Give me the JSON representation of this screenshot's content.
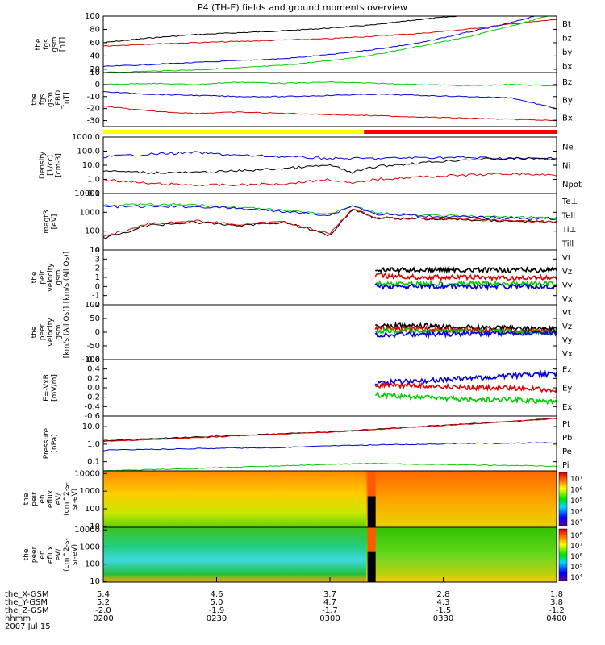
{
  "title": "P4 (TH-E) fields and ground moments overview",
  "chart_data": [
    {
      "type": "line",
      "ylabel": [
        "the",
        "fgs",
        "gsm",
        "[nT]"
      ],
      "ylim": [
        15,
        100
      ],
      "yticks": [
        "100",
        "80",
        "60",
        "40",
        "20"
      ],
      "yticks_values": [
        100,
        80,
        60,
        40,
        20
      ],
      "legend": [
        {
          "name": "Bt",
          "color": "#000000"
        },
        {
          "name": "bz",
          "color": "#e00000"
        },
        {
          "name": "by",
          "color": "#00cc00"
        },
        {
          "name": "bx",
          "color": "#0000e0"
        }
      ],
      "series": [
        {
          "name": "Bt",
          "color": "#000000",
          "x": [
            0,
            0.1,
            0.2,
            0.3,
            0.4,
            0.5,
            0.6,
            0.7,
            0.78
          ],
          "values": [
            60,
            67,
            72,
            75,
            78,
            82,
            87,
            95,
            100
          ]
        },
        {
          "name": "bz",
          "color": "#e00000",
          "x": [
            0,
            0.1,
            0.2,
            0.3,
            0.4,
            0.5,
            0.6,
            0.7,
            0.8,
            0.9,
            1.0
          ],
          "values": [
            55,
            58,
            60,
            62,
            64,
            66,
            70,
            74,
            80,
            88,
            95
          ]
        },
        {
          "name": "bx",
          "color": "#0000e0",
          "x": [
            0,
            0.1,
            0.2,
            0.3,
            0.4,
            0.5,
            0.6,
            0.7,
            0.8,
            0.9,
            0.95
          ],
          "values": [
            24,
            27,
            30,
            33,
            36,
            42,
            50,
            60,
            75,
            90,
            100
          ]
        },
        {
          "name": "by",
          "color": "#00cc00",
          "x": [
            0,
            0.1,
            0.2,
            0.3,
            0.4,
            0.5,
            0.6,
            0.7,
            0.8,
            0.9,
            0.98
          ],
          "values": [
            15,
            17,
            19,
            22,
            26,
            33,
            42,
            55,
            68,
            85,
            100
          ]
        }
      ]
    },
    {
      "type": "line",
      "ylabel": [
        "the",
        "fgs",
        "gsm",
        "_EBD",
        "[nT]"
      ],
      "ylim": [
        -35,
        10
      ],
      "yticks": [
        "10",
        "0",
        "-10",
        "-20",
        "-30"
      ],
      "yticks_values": [
        10,
        0,
        -10,
        -20,
        -30
      ],
      "legend": [
        {
          "name": "Bz",
          "color": "#e00000"
        },
        {
          "name": "By",
          "color": "#00cc00"
        },
        {
          "name": "Bx",
          "color": "#0000e0"
        }
      ],
      "series": [
        {
          "name": "By",
          "color": "#00cc00",
          "x": [
            0,
            0.1,
            0.2,
            0.3,
            0.4,
            0.5,
            0.6,
            0.7,
            0.8,
            0.9,
            1.0
          ],
          "values": [
            0,
            1,
            0,
            2,
            1,
            2,
            1,
            0,
            -1,
            0,
            -1
          ]
        },
        {
          "name": "Bx",
          "color": "#0000e0",
          "x": [
            0,
            0.1,
            0.2,
            0.3,
            0.4,
            0.5,
            0.6,
            0.7,
            0.8,
            0.9,
            1.0
          ],
          "values": [
            -6,
            -8,
            -9,
            -10,
            -10,
            -9,
            -8,
            -9,
            -10,
            -11,
            -20
          ]
        },
        {
          "name": "Bz",
          "color": "#e00000",
          "x": [
            0,
            0.1,
            0.2,
            0.3,
            0.4,
            0.5,
            0.6,
            0.7,
            0.8,
            0.9,
            1.0
          ],
          "values": [
            -18,
            -22,
            -24,
            -23,
            -24,
            -25,
            -26,
            -27,
            -28,
            -29,
            -30
          ]
        }
      ]
    },
    {
      "type": "line",
      "ylabel": [
        "Density",
        "[1/cc]",
        "[cm-3]"
      ],
      "yscale": "log",
      "ylim": [
        0.1,
        1000
      ],
      "yticks": [
        "1000.0",
        "100.0",
        "10.0",
        "1.0",
        "0.1"
      ],
      "yticks_values": [
        1000,
        100,
        10,
        1,
        0.1
      ],
      "legend": [
        {
          "name": "Ne",
          "color": "#e00000"
        },
        {
          "name": "Ni",
          "color": "#000000"
        },
        {
          "name": "Npot",
          "color": "#0000e0"
        }
      ],
      "series": [
        {
          "name": "Npot",
          "color": "#0000e0",
          "x": [
            0,
            0.1,
            0.2,
            0.3,
            0.4,
            0.5,
            0.6,
            0.7,
            0.8,
            0.9,
            1.0
          ],
          "values": [
            40,
            60,
            80,
            50,
            40,
            30,
            30,
            35,
            35,
            30,
            30
          ]
        },
        {
          "name": "Ni",
          "color": "#000000",
          "x": [
            0,
            0.1,
            0.2,
            0.3,
            0.4,
            0.5,
            0.55,
            0.6,
            0.7,
            0.8,
            0.9,
            1.0
          ],
          "values": [
            4,
            3,
            3,
            4,
            6,
            10,
            3,
            8,
            15,
            25,
            30,
            30
          ]
        },
        {
          "name": "Ne",
          "color": "#e00000",
          "x": [
            0,
            0.1,
            0.2,
            0.3,
            0.4,
            0.5,
            0.55,
            0.6,
            0.7,
            0.8,
            0.9,
            1.0
          ],
          "values": [
            1,
            0.5,
            0.4,
            0.4,
            0.5,
            1,
            0.5,
            1,
            1.5,
            2,
            2.5,
            2
          ]
        }
      ]
    },
    {
      "type": "line",
      "ylabel": [
        "magt3",
        "[eV]"
      ],
      "yscale": "log",
      "ylim": [
        10,
        10000
      ],
      "yticks": [
        "10000",
        "1000",
        "100",
        "10"
      ],
      "yticks_values": [
        10000,
        1000,
        100,
        10
      ],
      "legend": [
        {
          "name": "Te⊥",
          "color": "#e00000"
        },
        {
          "name": "Tell",
          "color": "#000000"
        },
        {
          "name": "Ti⊥",
          "color": "#00cc00"
        },
        {
          "name": "Till",
          "color": "#00cc00"
        }
      ],
      "series": [
        {
          "name": "Till",
          "color": "#00cc00",
          "x": [
            0,
            0.1,
            0.2,
            0.3,
            0.4,
            0.5,
            0.55,
            0.6,
            0.7,
            0.8,
            0.9,
            1.0
          ],
          "values": [
            2500,
            2500,
            2500,
            1800,
            1200,
            800,
            2500,
            900,
            700,
            600,
            550,
            500
          ]
        },
        {
          "name": "Ti⊥",
          "color": "#0000e0",
          "x": [
            0,
            0.1,
            0.2,
            0.3,
            0.4,
            0.5,
            0.55,
            0.6,
            0.7,
            0.8,
            0.9,
            1.0
          ],
          "values": [
            2000,
            2000,
            2000,
            1600,
            1100,
            700,
            2300,
            800,
            650,
            550,
            500,
            450
          ]
        },
        {
          "name": "Tell",
          "color": "#000000",
          "x": [
            0,
            0.1,
            0.2,
            0.3,
            0.4,
            0.5,
            0.55,
            0.6,
            0.7,
            0.8,
            0.9,
            1.0
          ],
          "values": [
            40,
            200,
            300,
            200,
            300,
            60,
            1500,
            500,
            450,
            400,
            350,
            300
          ]
        },
        {
          "name": "Te⊥",
          "color": "#e00000",
          "x": [
            0,
            0.1,
            0.2,
            0.3,
            0.4,
            0.5,
            0.55,
            0.6,
            0.7,
            0.8,
            0.9,
            1.0
          ],
          "values": [
            50,
            250,
            350,
            220,
            320,
            70,
            1600,
            520,
            470,
            420,
            370,
            320
          ]
        }
      ]
    },
    {
      "type": "line",
      "ylabel": [
        "the",
        "peir",
        "velocity",
        "gsm",
        "[km/s (All Qs)]"
      ],
      "ylim": [
        -2,
        4
      ],
      "yticks": [
        "4",
        "3",
        "2",
        "1",
        "0",
        "-1",
        "-2"
      ],
      "yticks_values": [
        4,
        3,
        2,
        1,
        0,
        -1,
        -2
      ],
      "legend": [
        {
          "name": "Vt",
          "color": "#000000"
        },
        {
          "name": "Vz",
          "color": "#e00000"
        },
        {
          "name": "Vy",
          "color": "#00cc00"
        },
        {
          "name": "Vx",
          "color": "#0000e0"
        }
      ],
      "series": [
        {
          "name": "Vt",
          "color": "#000000",
          "x": [
            0.6,
            0.7,
            0.8,
            0.9,
            1.0
          ],
          "values": [
            1.8,
            1.8,
            1.8,
            1.8,
            1.8
          ]
        },
        {
          "name": "Vz",
          "color": "#e00000",
          "x": [
            0.6,
            0.7,
            0.8,
            0.9,
            1.0
          ],
          "values": [
            1.2,
            1.0,
            1.0,
            0.9,
            1.0
          ]
        },
        {
          "name": "Vy",
          "color": "#00cc00",
          "x": [
            0.6,
            0.7,
            0.8,
            0.9,
            1.0
          ],
          "values": [
            0.3,
            0.3,
            0.3,
            0.3,
            0.3
          ]
        },
        {
          "name": "Vx",
          "color": "#0000e0",
          "x": [
            0.6,
            0.7,
            0.8,
            0.9,
            1.0
          ],
          "values": [
            0.0,
            0.0,
            0.0,
            0.0,
            0.0
          ]
        }
      ]
    },
    {
      "type": "line",
      "ylabel": [
        "the",
        "peer",
        "velocity",
        "gsm",
        "[km/s (All Qs)]"
      ],
      "ylim": [
        -100,
        100
      ],
      "yticks": [
        "100",
        "50",
        "0",
        "-50",
        "-100"
      ],
      "yticks_values": [
        100,
        50,
        0,
        -50,
        -100
      ],
      "legend": [
        {
          "name": "Vt",
          "color": "#000000"
        },
        {
          "name": "Vz",
          "color": "#e00000"
        },
        {
          "name": "Vy",
          "color": "#00cc00"
        },
        {
          "name": "Vx",
          "color": "#0000e0"
        }
      ],
      "series": [
        {
          "name": "Vt",
          "color": "#000000",
          "x": [
            0.6,
            0.7,
            0.8,
            0.9,
            1.0
          ],
          "values": [
            25,
            22,
            18,
            15,
            10
          ]
        },
        {
          "name": "Vz",
          "color": "#e00000",
          "x": [
            0.6,
            0.7,
            0.8,
            0.9,
            1.0
          ],
          "values": [
            15,
            12,
            8,
            5,
            2
          ]
        },
        {
          "name": "Vy",
          "color": "#00cc00",
          "x": [
            0.6,
            0.7,
            0.8,
            0.9,
            1.0
          ],
          "values": [
            5,
            4,
            2,
            1,
            0
          ]
        },
        {
          "name": "Vx",
          "color": "#0000e0",
          "x": [
            0.6,
            0.7,
            0.8,
            0.9,
            1.0
          ],
          "values": [
            -10,
            -8,
            -5,
            -3,
            -2
          ]
        }
      ]
    },
    {
      "type": "line",
      "ylabel": [
        "E=-VxB",
        "[mV/m]"
      ],
      "ylim": [
        -0.6,
        0.6
      ],
      "yticks": [
        "0.6",
        "0.4",
        "0.2",
        "0.0",
        "-0.2",
        "-0.4",
        "-0.6"
      ],
      "yticks_values": [
        0.6,
        0.4,
        0.2,
        0.0,
        -0.2,
        -0.4,
        -0.6
      ],
      "legend": [
        {
          "name": "Ez",
          "color": "#e00000"
        },
        {
          "name": "Ey",
          "color": "#00cc00"
        },
        {
          "name": "Ex",
          "color": "#0000e0"
        }
      ],
      "series": [
        {
          "name": "Ex",
          "color": "#0000e0",
          "x": [
            0.6,
            0.7,
            0.8,
            0.9,
            1.0
          ],
          "values": [
            0.1,
            0.15,
            0.2,
            0.25,
            0.3
          ]
        },
        {
          "name": "Ez",
          "color": "#e00000",
          "x": [
            0.6,
            0.7,
            0.8,
            0.9,
            1.0
          ],
          "values": [
            0.05,
            0.05,
            0.0,
            0.0,
            -0.05
          ]
        },
        {
          "name": "Ey",
          "color": "#00cc00",
          "x": [
            0.6,
            0.7,
            0.8,
            0.9,
            1.0
          ],
          "values": [
            -0.15,
            -0.2,
            -0.25,
            -0.25,
            -0.3
          ]
        }
      ]
    },
    {
      "type": "line",
      "ylabel": [
        "Pressure",
        "[nPa]"
      ],
      "yscale": "log",
      "ylim": [
        0.03,
        40
      ],
      "yticks": [
        "10.0",
        "1.0",
        "0.1"
      ],
      "yticks_values": [
        10,
        1,
        0.1
      ],
      "legend": [
        {
          "name": "Pt",
          "color": "#000000"
        },
        {
          "name": "Pb",
          "color": "#e00000"
        },
        {
          "name": "Pe",
          "color": "#00cc00"
        },
        {
          "name": "Pi",
          "color": "#0000e0"
        }
      ],
      "series": [
        {
          "name": "Pt",
          "color": "#000000",
          "x": [
            0,
            0.1,
            0.2,
            0.3,
            0.4,
            0.5,
            0.6,
            0.7,
            0.8,
            0.9,
            1.0
          ],
          "values": [
            1.6,
            2.0,
            2.5,
            3.2,
            4.0,
            5.0,
            7.0,
            10,
            14,
            20,
            30
          ]
        },
        {
          "name": "Pb",
          "color": "#e00000",
          "x": [
            0,
            0.1,
            0.2,
            0.3,
            0.4,
            0.5,
            0.6,
            0.7,
            0.8,
            0.9,
            1.0
          ],
          "values": [
            1.4,
            1.8,
            2.3,
            3.0,
            3.8,
            4.8,
            6.8,
            9.8,
            13.8,
            19.8,
            29
          ]
        },
        {
          "name": "Pi",
          "color": "#0000e0",
          "x": [
            0,
            0.1,
            0.2,
            0.3,
            0.4,
            0.5,
            0.6,
            0.7,
            0.8,
            0.9,
            1.0
          ],
          "values": [
            0.45,
            0.5,
            0.55,
            0.6,
            0.65,
            0.8,
            0.9,
            1.0,
            1.1,
            1.15,
            1.2
          ]
        },
        {
          "name": "Pe",
          "color": "#00cc00",
          "x": [
            0,
            0.1,
            0.2,
            0.3,
            0.4,
            0.5,
            0.6,
            0.7,
            0.8,
            0.9,
            1.0
          ],
          "values": [
            0.03,
            0.035,
            0.04,
            0.05,
            0.06,
            0.07,
            0.08,
            0.07,
            0.065,
            0.06,
            0.055
          ]
        }
      ]
    },
    {
      "type": "heatmap",
      "ylabel": [
        "the",
        "peir",
        "en",
        "eflux",
        "eV/",
        "(cm^2-s-",
        "sr-eV)"
      ],
      "yticks": [
        "10000",
        "1000",
        "100",
        "10"
      ],
      "yticks_values": [
        10000,
        1000,
        100,
        10
      ],
      "colorbar_ticks": [
        "10⁷",
        "10⁶",
        "10⁵",
        "10⁴",
        "10³"
      ]
    },
    {
      "type": "heatmap",
      "ylabel": [
        "the",
        "peer",
        "en",
        "eflux",
        "eV/",
        "(cm^2-s-",
        "sr-eV)"
      ],
      "yticks": [
        "10000",
        "1000",
        "100",
        "10"
      ],
      "yticks_values": [
        10000,
        1000,
        100,
        10
      ],
      "colorbar_ticks": [
        "10⁸",
        "10⁷",
        "10⁶",
        "10⁵",
        "10⁴"
      ]
    }
  ],
  "xaxis": {
    "rows": [
      {
        "label": "the_X-GSM",
        "values": [
          "5.4",
          "4.6",
          "3.7",
          "2.8",
          "1.8"
        ]
      },
      {
        "label": "the_Y-GSM",
        "values": [
          "5.2",
          "5.0",
          "4.7",
          "4.3",
          "3.8"
        ]
      },
      {
        "label": "the_Z-GSM",
        "values": [
          "-2.0",
          "-1.9",
          "-1.7",
          "-1.5",
          "-1.2"
        ]
      },
      {
        "label": "hhmm",
        "values": [
          "0200",
          "0230",
          "0300",
          "0330",
          "0400"
        ]
      }
    ],
    "date": "2007 Jul 15"
  }
}
